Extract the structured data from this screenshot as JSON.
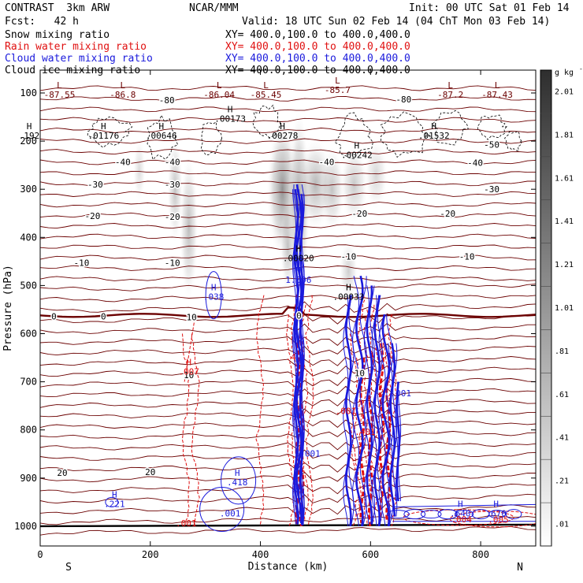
{
  "header": {
    "title": "CONTRAST  3km ARW",
    "org": "NCAR/MMM",
    "init": "Init: 00 UTC Sat 01 Feb 14",
    "fcst": "Fcst:   42 h",
    "valid": "Valid: 18 UTC Sun 02 Feb 14 (04 ChT Mon 03 Feb 14)",
    "fields": [
      {
        "name": "Snow mixing ratio",
        "xy": "XY= 400.0,100.0 to 400.0,400.0",
        "color": "#000000"
      },
      {
        "name": "Rain water mixing ratio",
        "xy": "XY= 400.0,100.0 to 400.0,400.0",
        "color": "#e01010"
      },
      {
        "name": "Cloud water mixing ratio",
        "xy": "XY= 400.0,100.0 to 400.0,400.0",
        "color": "#1a1adc"
      },
      {
        "name": "Cloud ice mixing ratio",
        "xy": "XY= 400.0,100.0 to 400.0,400.0",
        "color": "#000000"
      }
    ]
  },
  "chart_data": {
    "type": "contour-cross-section",
    "xlabel": "Distance (km)",
    "ylabel": "Pressure (hPa)",
    "xlim": [
      0,
      900
    ],
    "ylim": [
      1040,
      50
    ],
    "x_ticks": [
      0,
      200,
      400,
      600,
      800
    ],
    "y_ticks": [
      100,
      200,
      300,
      400,
      500,
      600,
      700,
      800,
      900,
      1000
    ],
    "dir_labels": {
      "left": "S",
      "right": "N"
    },
    "colorbar": {
      "unit": "g kg",
      "unit_exp": "-1",
      "ticks": [
        ".01",
        ".21",
        ".41",
        ".61",
        ".81",
        "1.01",
        "1.21",
        "1.41",
        "1.61",
        "1.81",
        "2.01"
      ]
    },
    "temperature_contours": [
      {
        "label": "-80",
        "x": 230,
        "p": 115
      },
      {
        "label": "-80",
        "x": 660,
        "p": 113
      },
      {
        "label": "-50",
        "x": 820,
        "p": 207
      },
      {
        "label": "-40",
        "x": 150,
        "p": 243
      },
      {
        "label": "-40",
        "x": 240,
        "p": 243
      },
      {
        "label": "-40",
        "x": 520,
        "p": 243
      },
      {
        "label": "-40",
        "x": 790,
        "p": 245
      },
      {
        "label": "-30",
        "x": 100,
        "p": 290
      },
      {
        "label": "-30",
        "x": 240,
        "p": 290
      },
      {
        "label": "-30",
        "x": 820,
        "p": 300
      },
      {
        "label": "-20",
        "x": 95,
        "p": 355
      },
      {
        "label": "-20",
        "x": 240,
        "p": 357
      },
      {
        "label": "-20",
        "x": 580,
        "p": 350
      },
      {
        "label": "-20",
        "x": 740,
        "p": 350
      },
      {
        "label": "-10",
        "x": 75,
        "p": 453
      },
      {
        "label": "-10",
        "x": 240,
        "p": 453
      },
      {
        "label": "-10",
        "x": 560,
        "p": 440
      },
      {
        "label": "-10",
        "x": 775,
        "p": 440
      },
      {
        "label": "0",
        "x": 25,
        "p": 564
      },
      {
        "label": "0",
        "x": 115,
        "p": 564
      },
      {
        "label": "0",
        "x": 470,
        "p": 562
      },
      {
        "label": "10",
        "x": 275,
        "p": 566
      },
      {
        "label": "10",
        "x": 270,
        "p": 686
      },
      {
        "label": "10",
        "x": 580,
        "p": 682
      },
      {
        "label": "20",
        "x": 40,
        "p": 889
      },
      {
        "label": "20",
        "x": 200,
        "p": 887
      }
    ],
    "extrema": [
      {
        "type": "L",
        "value": "-87.55",
        "x": 35,
        "p": 100,
        "color": "#6b0000"
      },
      {
        "type": "L",
        "value": "-86.8",
        "x": 150,
        "p": 100,
        "color": "#6b0000"
      },
      {
        "type": "L",
        "value": "-86.04",
        "x": 325,
        "p": 100,
        "color": "#6b0000"
      },
      {
        "type": "L",
        "value": "-85.45",
        "x": 410,
        "p": 100,
        "color": "#6b0000"
      },
      {
        "type": "L",
        "value": "-85.7",
        "x": 540,
        "p": 90,
        "color": "#6b0000"
      },
      {
        "type": "L",
        "value": "-87.2",
        "x": 745,
        "p": 100,
        "color": "#6b0000"
      },
      {
        "type": "L",
        "value": "-87.43",
        "x": 830,
        "p": 100,
        "color": "#6b0000"
      },
      {
        "type": "H",
        "value": ".192",
        "x": -20,
        "p": 185,
        "color": "#000000"
      },
      {
        "type": "H",
        "value": ".01176",
        "x": 115,
        "p": 185,
        "color": "#000000"
      },
      {
        "type": "H",
        "value": ".00646",
        "x": 220,
        "p": 185,
        "color": "#000000"
      },
      {
        "type": "H",
        "value": ".00173",
        "x": 345,
        "p": 150,
        "color": "#000000"
      },
      {
        "type": "H",
        "value": ".00278",
        "x": 440,
        "p": 185,
        "color": "#000000"
      },
      {
        "type": "H",
        "value": ".00242",
        "x": 575,
        "p": 225,
        "color": "#000000"
      },
      {
        "type": "H",
        "value": ".01532",
        "x": 715,
        "p": 185,
        "color": "#000000"
      },
      {
        "type": "H",
        "value": ".00020",
        "x": 469,
        "p": 440,
        "color": "#000000"
      },
      {
        "type": "H",
        "value": "1.096",
        "x": 469,
        "p": 485,
        "color": "#1a1adc"
      },
      {
        "type": "H",
        "value": ".00033",
        "x": 560,
        "p": 520,
        "color": "#000000"
      },
      {
        "type": "H",
        "value": ".038",
        "x": 315,
        "p": 520,
        "color": "#1a1adc"
      },
      {
        "type": "H",
        "value": ".007",
        "x": 270,
        "p": 675,
        "color": "#e01010"
      },
      {
        "type": "H",
        "value": ".418",
        "x": 358,
        "p": 905,
        "color": "#1a1adc"
      },
      {
        "type": "H",
        "value": ".221",
        "x": 135,
        "p": 950,
        "color": "#1a1adc"
      },
      {
        "type": "H",
        "value": ".640",
        "x": 763,
        "p": 970,
        "color": "#1a1adc"
      },
      {
        "type": "H",
        "value": ".670",
        "x": 828,
        "p": 970,
        "color": "#1a1adc"
      }
    ],
    "value_labels": [
      {
        "text": ".001",
        "x": 265,
        "p": 1000,
        "color": "#e01010"
      },
      {
        "text": ".001",
        "x": 345,
        "p": 980,
        "color": "#1a1adc"
      },
      {
        "text": ".001",
        "x": 555,
        "p": 767,
        "color": "#e01010"
      },
      {
        "text": ".001",
        "x": 490,
        "p": 855,
        "color": "#1a1adc"
      },
      {
        "text": ".001",
        "x": 655,
        "p": 730,
        "color": "#1a1adc"
      },
      {
        "text": ".401",
        "x": 590,
        "p": 810,
        "color": "#e01010"
      },
      {
        "text": ".4",
        "x": 455,
        "p": 655,
        "color": "#e01010"
      },
      {
        "text": ".004",
        "x": 765,
        "p": 992,
        "color": "#e01010"
      },
      {
        "text": ".005",
        "x": 832,
        "p": 993,
        "color": "#e01010"
      }
    ]
  }
}
